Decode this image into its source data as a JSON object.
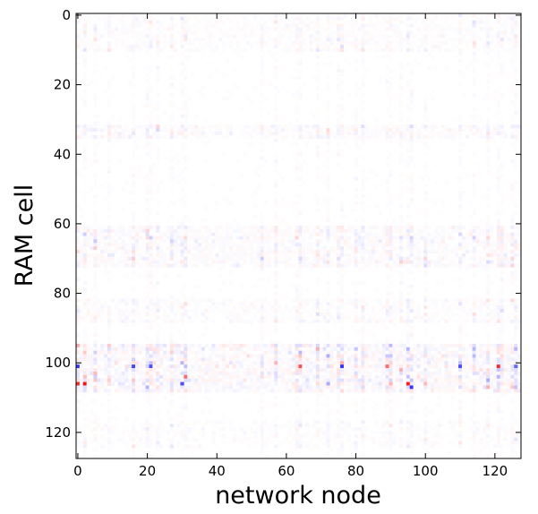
{
  "chart_data": {
    "type": "heatmap",
    "title": "",
    "xlabel": "network node",
    "ylabel": "RAM cell",
    "x_range": [
      0,
      127
    ],
    "y_range": [
      0,
      127
    ],
    "x_ticks": [
      "0",
      "20",
      "40",
      "60",
      "80",
      "100",
      "120"
    ],
    "y_ticks": [
      "0",
      "20",
      "40",
      "60",
      "80",
      "100",
      "120"
    ],
    "y_axis_inverted": true,
    "grid": false,
    "colormap": "bwr",
    "colors": {
      "negative": "#0000ff",
      "zero": "#ffffff",
      "positive": "#ff0000"
    },
    "description_note_values_in_range": [
      -1,
      1
    ],
    "strong_cells": [
      {
        "x": 0,
        "y": 101,
        "v": -0.8
      },
      {
        "x": 0,
        "y": 106,
        "v": 0.85
      },
      {
        "x": 2,
        "y": 106,
        "v": 0.95
      },
      {
        "x": 16,
        "y": 101,
        "v": -0.75
      },
      {
        "x": 21,
        "y": 101,
        "v": -0.7
      },
      {
        "x": 30,
        "y": 106,
        "v": -0.7
      },
      {
        "x": 31,
        "y": 104,
        "v": 0.6
      },
      {
        "x": 64,
        "y": 101,
        "v": 0.7
      },
      {
        "x": 76,
        "y": 101,
        "v": -0.8
      },
      {
        "x": 89,
        "y": 101,
        "v": 0.6
      },
      {
        "x": 95,
        "y": 106,
        "v": 0.9
      },
      {
        "x": 96,
        "y": 107,
        "v": -0.8
      },
      {
        "x": 110,
        "y": 101,
        "v": -0.7
      },
      {
        "x": 121,
        "y": 101,
        "v": 0.85
      },
      {
        "x": 126,
        "y": 101,
        "v": -0.6
      }
    ],
    "bands": [
      {
        "rows": [
          95,
          108
        ],
        "strength": 0.35
      },
      {
        "rows": [
          61,
          72
        ],
        "strength": 0.22
      },
      {
        "rows": [
          32,
          35
        ],
        "strength": 0.18
      },
      {
        "rows": [
          0,
          10
        ],
        "strength": 0.12
      },
      {
        "rows": [
          82,
          88
        ],
        "strength": 0.14
      },
      {
        "rows": [
          117,
          124
        ],
        "strength": 0.1
      }
    ],
    "active_columns": [
      0,
      2,
      5,
      9,
      16,
      20,
      21,
      23,
      27,
      30,
      31,
      53,
      57,
      63,
      64,
      69,
      72,
      75,
      76,
      80,
      82,
      89,
      90,
      93,
      95,
      96,
      100,
      110,
      114,
      118,
      121,
      122,
      125,
      126
    ]
  }
}
